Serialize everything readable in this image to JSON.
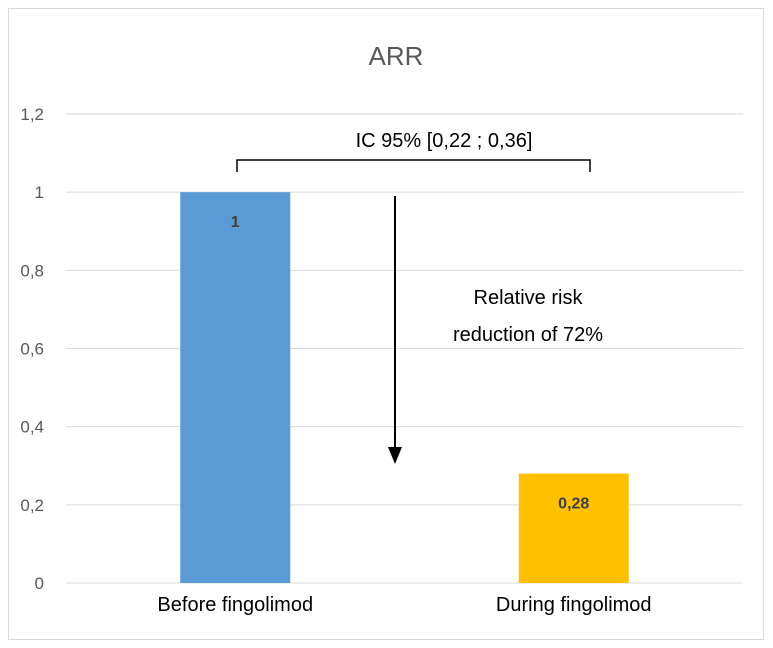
{
  "chart_data": {
    "type": "bar",
    "title": "ARR",
    "xlabel": "",
    "ylabel": "",
    "categories": [
      "Before fingolimod",
      "During fingolimod"
    ],
    "values": [
      1,
      0.28
    ],
    "data_labels": [
      "1",
      "0,28"
    ],
    "colors": [
      "#5b9bd5",
      "#ffc000"
    ],
    "ylim": [
      0,
      1.2
    ],
    "y_ticks": [
      {
        "value": 0,
        "label": "0"
      },
      {
        "value": 0.2,
        "label": "0,2"
      },
      {
        "value": 0.4,
        "label": "0,4"
      },
      {
        "value": 0.6,
        "label": "0,6"
      },
      {
        "value": 0.8,
        "label": "0,8"
      },
      {
        "value": 1,
        "label": "1"
      },
      {
        "value": 1.2,
        "label": "1,2"
      }
    ],
    "grid": true,
    "legend": "none",
    "annotations": {
      "confidence_interval": "IC 95% [0,22 ; 0,36]",
      "reduction_line1": "Relative risk",
      "reduction_line2": "reduction of 72%"
    }
  }
}
